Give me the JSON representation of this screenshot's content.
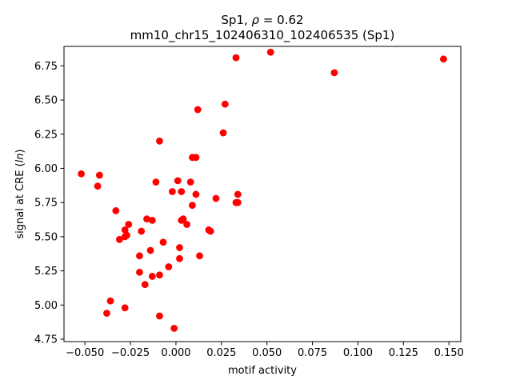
{
  "chart_data": {
    "type": "scatter",
    "title_line1_prefix": "Sp1, ",
    "title_rho_symbol": "ρ",
    "title_line1_suffix": " = 0.62",
    "title_line2": "mm10_chr15_102406310_102406535 (Sp1)",
    "xlabel": "motif activity",
    "ylabel_prefix": "signal at CRE (",
    "ylabel_italic": "ln",
    "ylabel_suffix": ")",
    "xlim": [
      -0.0615,
      0.1565
    ],
    "ylim": [
      4.7325,
      6.8925
    ],
    "xticks": [
      -0.05,
      -0.025,
      0.0,
      0.025,
      0.05,
      0.075,
      0.1,
      0.125,
      0.15
    ],
    "xtick_labels": [
      "−0.050",
      "−0.025",
      "0.000",
      "0.025",
      "0.050",
      "0.075",
      "0.100",
      "0.125",
      "0.150"
    ],
    "yticks": [
      4.75,
      5.0,
      5.25,
      5.5,
      5.75,
      6.0,
      6.25,
      6.5,
      6.75
    ],
    "ytick_labels": [
      "4.75",
      "5.00",
      "5.25",
      "5.50",
      "5.75",
      "6.00",
      "6.25",
      "6.50",
      "6.75"
    ],
    "marker_color": "#ff0000",
    "grid": false,
    "series": [
      {
        "points": [
          [
            -0.052,
            5.96
          ],
          [
            -0.042,
            5.95
          ],
          [
            -0.043,
            5.87
          ],
          [
            -0.033,
            5.69
          ],
          [
            -0.031,
            5.48
          ],
          [
            -0.028,
            5.55
          ],
          [
            -0.026,
            5.59
          ],
          [
            -0.027,
            5.51
          ],
          [
            -0.028,
            5.5
          ],
          [
            -0.038,
            4.94
          ],
          [
            -0.036,
            5.03
          ],
          [
            -0.028,
            4.98
          ],
          [
            -0.019,
            5.54
          ],
          [
            -0.016,
            5.63
          ],
          [
            -0.013,
            5.62
          ],
          [
            -0.02,
            5.36
          ],
          [
            -0.014,
            5.4
          ],
          [
            -0.02,
            5.24
          ],
          [
            -0.017,
            5.15
          ],
          [
            -0.013,
            5.21
          ],
          [
            -0.009,
            5.22
          ],
          [
            -0.009,
            4.92
          ],
          [
            -0.001,
            4.83
          ],
          [
            -0.007,
            5.46
          ],
          [
            -0.004,
            5.28
          ],
          [
            -0.009,
            6.2
          ],
          [
            -0.011,
            5.9
          ],
          [
            -0.002,
            5.83
          ],
          [
            0.001,
            5.91
          ],
          [
            0.003,
            5.83
          ],
          [
            0.003,
            5.62
          ],
          [
            0.004,
            5.63
          ],
          [
            0.006,
            5.59
          ],
          [
            0.002,
            5.42
          ],
          [
            0.002,
            5.34
          ],
          [
            0.008,
            5.9
          ],
          [
            0.009,
            5.73
          ],
          [
            0.011,
            5.81
          ],
          [
            0.009,
            6.08
          ],
          [
            0.011,
            6.08
          ],
          [
            0.013,
            5.36
          ],
          [
            0.018,
            5.55
          ],
          [
            0.019,
            5.54
          ],
          [
            0.022,
            5.78
          ],
          [
            0.012,
            6.43
          ],
          [
            0.026,
            6.26
          ],
          [
            0.027,
            6.47
          ],
          [
            0.034,
            5.81
          ],
          [
            0.033,
            5.75
          ],
          [
            0.034,
            5.75
          ],
          [
            0.033,
            6.81
          ],
          [
            0.052,
            6.85
          ],
          [
            0.087,
            6.7
          ],
          [
            0.147,
            6.8
          ]
        ]
      }
    ]
  }
}
